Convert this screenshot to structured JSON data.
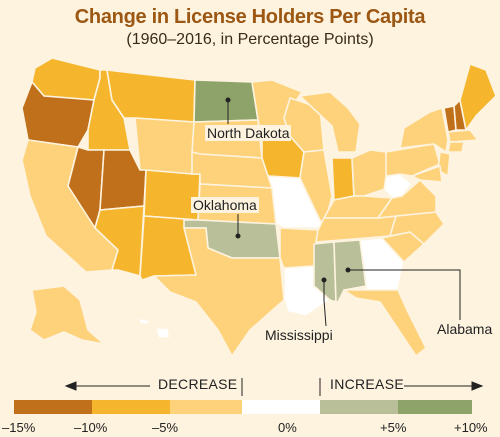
{
  "title": "Change in License Holders Per Capita",
  "subtitle": "(1960–2016, in Percentage Points)",
  "colors": {
    "dark_decrease": "#c06f1a",
    "medium_decrease": "#f5b62e",
    "light_decrease": "#fdd27a",
    "no_change": "#ffffff",
    "light_increase": "#b9bf98",
    "strong_increase": "#8ea36a",
    "state_border": "#fdf3df"
  },
  "callouts": {
    "north_dakota": "North Dakota",
    "oklahoma": "Oklahoma",
    "mississippi": "Mississippi",
    "alabama": "Alabama"
  },
  "legend": {
    "decrease_label": "DECREASE",
    "increase_label": "INCREASE",
    "ticks": [
      "–15%",
      "–10%",
      "–5%",
      "0%",
      "+5%",
      "+10%"
    ]
  }
}
